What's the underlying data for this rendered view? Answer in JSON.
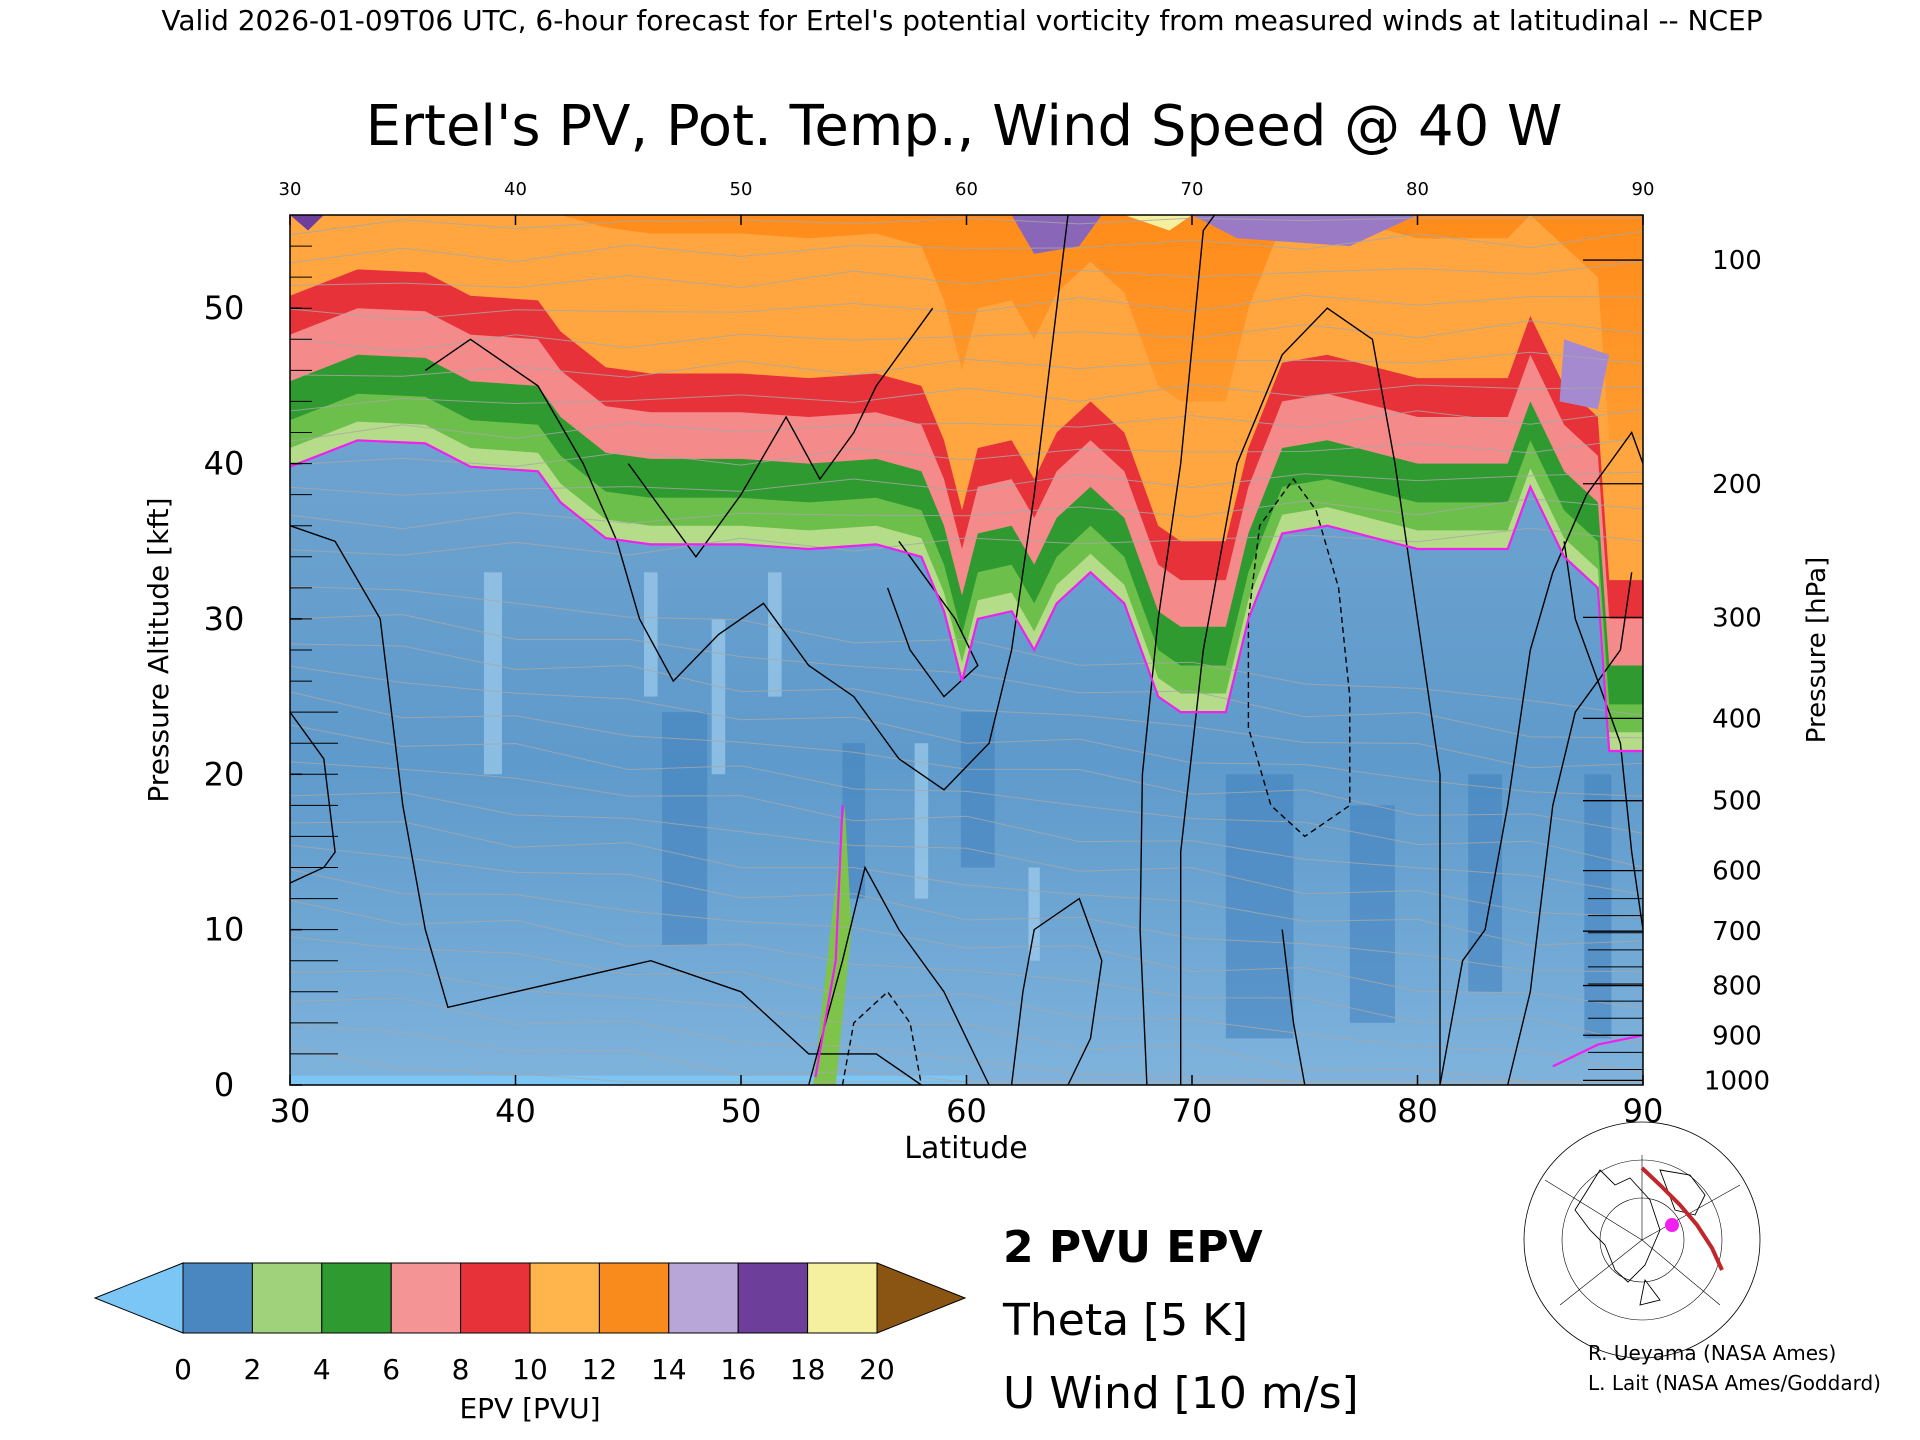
{
  "header": {
    "valid_line": "Valid 2026-01-09T06 UTC, 6-hour forecast for Ertel's potential vorticity from measured winds at latitudinal -- NCEP"
  },
  "chart_data": {
    "type": "heatmap",
    "title": "Ertel's PV, Pot. Temp., Wind Speed @ 40 W",
    "xlabel": "Latitude",
    "ylabel_left": "Pressure Altitude [kft]",
    "ylabel_right": "Pressure [hPa]",
    "xlim": [
      30,
      90
    ],
    "ylim_kft": [
      0,
      56
    ],
    "x_ticks_bottom": [
      "30",
      "40",
      "50",
      "60",
      "70",
      "80",
      "90"
    ],
    "x_ticks_top": [
      "30",
      "40",
      "50",
      "60",
      "70",
      "80",
      "90"
    ],
    "y_ticks_left": [
      "0",
      "10",
      "20",
      "30",
      "40",
      "50"
    ],
    "y_ticks_right": [
      {
        "label": "100",
        "kft": 53.1
      },
      {
        "label": "200",
        "kft": 38.7
      },
      {
        "label": "300",
        "kft": 30.1
      },
      {
        "label": "400",
        "kft": 23.6
      },
      {
        "label": "500",
        "kft": 18.3
      },
      {
        "label": "600",
        "kft": 13.8
      },
      {
        "label": "700",
        "kft": 9.9
      },
      {
        "label": "800",
        "kft": 6.4
      },
      {
        "label": "900",
        "kft": 3.2
      },
      {
        "label": "1000",
        "kft": 0.3
      }
    ],
    "tropopause_2pvu_kft": [
      {
        "lat": 30,
        "kft": 39.8
      },
      {
        "lat": 33,
        "kft": 41.5
      },
      {
        "lat": 36,
        "kft": 41.3
      },
      {
        "lat": 38,
        "kft": 39.8
      },
      {
        "lat": 41,
        "kft": 39.5
      },
      {
        "lat": 42,
        "kft": 37.5
      },
      {
        "lat": 44,
        "kft": 35.2
      },
      {
        "lat": 46,
        "kft": 34.8
      },
      {
        "lat": 50,
        "kft": 34.8
      },
      {
        "lat": 53,
        "kft": 34.5
      },
      {
        "lat": 56,
        "kft": 34.8
      },
      {
        "lat": 58,
        "kft": 34.0
      },
      {
        "lat": 59,
        "kft": 30.5
      },
      {
        "lat": 59.8,
        "kft": 26.0
      },
      {
        "lat": 60.5,
        "kft": 30.0
      },
      {
        "lat": 62,
        "kft": 30.5
      },
      {
        "lat": 63,
        "kft": 28.0
      },
      {
        "lat": 64,
        "kft": 31.0
      },
      {
        "lat": 65.5,
        "kft": 33.0
      },
      {
        "lat": 67,
        "kft": 31.0
      },
      {
        "lat": 68.5,
        "kft": 25.0
      },
      {
        "lat": 69.5,
        "kft": 24.0
      },
      {
        "lat": 71.5,
        "kft": 24.0
      },
      {
        "lat": 72.5,
        "kft": 30.0
      },
      {
        "lat": 74,
        "kft": 35.5
      },
      {
        "lat": 76,
        "kft": 36.0
      },
      {
        "lat": 80,
        "kft": 34.5
      },
      {
        "lat": 84,
        "kft": 34.5
      },
      {
        "lat": 85,
        "kft": 38.5
      },
      {
        "lat": 86.5,
        "kft": 34.0
      },
      {
        "lat": 88,
        "kft": 32.0
      },
      {
        "lat": 88.5,
        "kft": 21.5
      },
      {
        "lat": 90,
        "kft": 21.5
      }
    ],
    "colorbar": {
      "label": "EPV [PVU]",
      "ticks": [
        "0",
        "2",
        "4",
        "6",
        "8",
        "10",
        "12",
        "14",
        "16",
        "18",
        "20"
      ],
      "colors": [
        "#4a86c0",
        "#9fd27a",
        "#2f9a2f",
        "#f49494",
        "#e8323a",
        "#ffb44c",
        "#f98b1c",
        "#b9a6d8",
        "#6e3f9a",
        "#f5f0a0"
      ],
      "under_color": "#7cc6f5",
      "over_color": "#8a5512"
    },
    "legend": [
      {
        "label": "2 PVU EPV",
        "color": "#f020f0"
      },
      {
        "label": "Theta [5 K]",
        "color": "#b0b0b0"
      },
      {
        "label": "U Wind [10 m/s]",
        "color": "#000000"
      }
    ]
  },
  "credits": [
    "R. Ueyama (NASA Ames)",
    "L. Lait (NASA Ames/Goddard)"
  ]
}
